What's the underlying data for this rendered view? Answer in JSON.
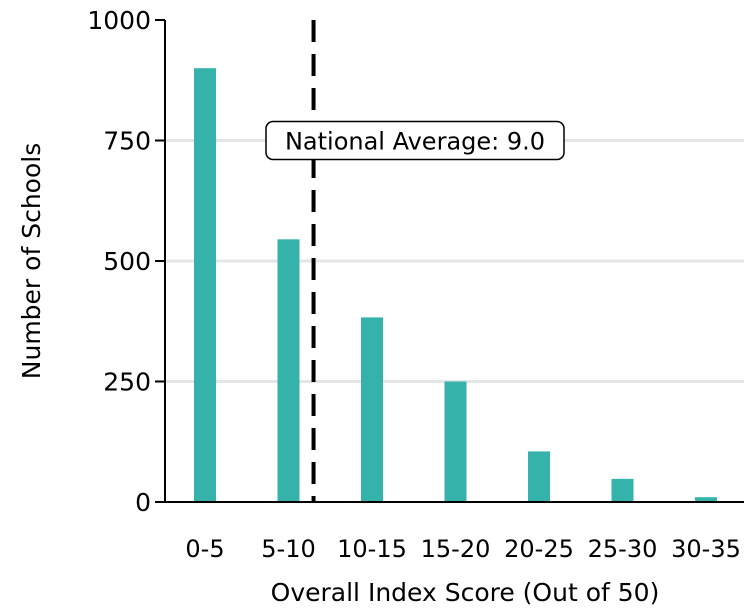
{
  "chart_data": {
    "type": "bar",
    "title": "",
    "xlabel": "Overall Index Score (Out of 50)",
    "ylabel": "Number of Schools",
    "categories": [
      "0-5",
      "5-10",
      "10-15",
      "15-20",
      "20-25",
      "25-30",
      "30-35"
    ],
    "values": [
      900,
      545,
      383,
      250,
      105,
      48,
      10
    ],
    "ylim": [
      0,
      1000
    ],
    "yticks": [
      0,
      250,
      500,
      750,
      1000
    ],
    "grid": "horizontal",
    "bar_color": "#35b3ab",
    "reference_line": {
      "value": 9.0,
      "label": "National Average: 9.0",
      "style": "dashed",
      "color": "#000000"
    }
  }
}
